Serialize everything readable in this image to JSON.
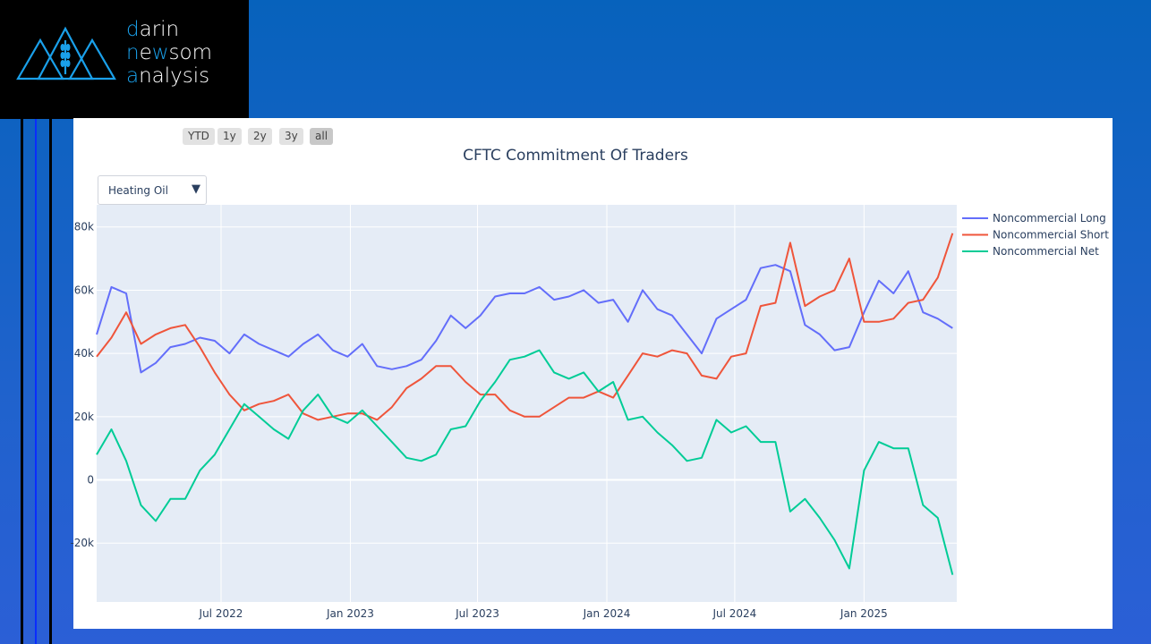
{
  "logo": {
    "line1_hl": "d",
    "line1": "arin",
    "line2_hl1": "n",
    "line2_a": "e",
    "line2_hl2": "w",
    "line2_b": "som",
    "line3_hl": "a",
    "line3": "nalysis"
  },
  "range_selector": [
    "YTD",
    "1y",
    "2y",
    "3y",
    "all"
  ],
  "range_active": "all",
  "dropdown": {
    "selected": "Heating Oil"
  },
  "colors": {
    "long": "#636efa",
    "short": "#ef553b",
    "net": "#00cc96",
    "plot_bg": "#e5ecf6"
  },
  "chart_data": {
    "type": "line",
    "title": "CFTC Commitment Of Traders",
    "xlabel": "",
    "ylabel": "",
    "x_start": "2022-01-05",
    "x_step_days": 21,
    "xlim": [
      "2022-01-05",
      "2025-05-13"
    ],
    "ylim": [
      -38600,
      87000
    ],
    "grid": true,
    "legend_position": "top-right",
    "y_ticks": [
      {
        "v": 80000,
        "label": "80k"
      },
      {
        "v": 60000,
        "label": "60k"
      },
      {
        "v": 40000,
        "label": "40k"
      },
      {
        "v": 20000,
        "label": "20k"
      },
      {
        "v": 0,
        "label": "0"
      },
      {
        "v": -20000,
        "label": "-20k"
      }
    ],
    "x_ticks": [
      {
        "date": "2022-07-01",
        "label": "Jul 2022"
      },
      {
        "date": "2023-01-01",
        "label": "Jan 2023"
      },
      {
        "date": "2023-07-01",
        "label": "Jul 2023"
      },
      {
        "date": "2024-01-01",
        "label": "Jan 2024"
      },
      {
        "date": "2024-07-01",
        "label": "Jul 2024"
      },
      {
        "date": "2025-01-01",
        "label": "Jan 2025"
      }
    ],
    "series": [
      {
        "name": "Noncommercial Long",
        "key": "long",
        "values": [
          46,
          61,
          59,
          34,
          37,
          42,
          43,
          45,
          44,
          40,
          46,
          43,
          41,
          39,
          43,
          46,
          41,
          39,
          43,
          36,
          35,
          36,
          38,
          44,
          52,
          48,
          52,
          58,
          59,
          59,
          61,
          57,
          58,
          60,
          56,
          57,
          50,
          60,
          54,
          52,
          46,
          40,
          51,
          54,
          57,
          67,
          68,
          66,
          49,
          46,
          41,
          42,
          53,
          63,
          59,
          66,
          53,
          51,
          48
        ]
      },
      {
        "name": "Noncommercial Short",
        "key": "short",
        "values": [
          39,
          45,
          53,
          43,
          46,
          48,
          49,
          42,
          34,
          27,
          22,
          24,
          25,
          27,
          21,
          19,
          20,
          21,
          21,
          19,
          23,
          29,
          32,
          36,
          36,
          31,
          27,
          27,
          22,
          20,
          20,
          23,
          26,
          26,
          28,
          26,
          33,
          40,
          39,
          41,
          40,
          33,
          32,
          39,
          40,
          55,
          56,
          75,
          55,
          58,
          60,
          70,
          50,
          50,
          51,
          56,
          57,
          64,
          78
        ]
      },
      {
        "name": "Noncommercial Net",
        "key": "net",
        "values": [
          8,
          16,
          6,
          -8,
          -13,
          -6,
          -6,
          3,
          8,
          16,
          24,
          20,
          16,
          13,
          22,
          27,
          20,
          18,
          22,
          17,
          12,
          7,
          6,
          8,
          16,
          17,
          25,
          31,
          38,
          39,
          41,
          34,
          32,
          34,
          28,
          31,
          19,
          20,
          15,
          11,
          6,
          7,
          19,
          15,
          17,
          12,
          12,
          -10,
          -6,
          -12,
          -19,
          -28,
          3,
          12,
          10,
          10,
          -8,
          -12,
          -30
        ]
      }
    ]
  }
}
